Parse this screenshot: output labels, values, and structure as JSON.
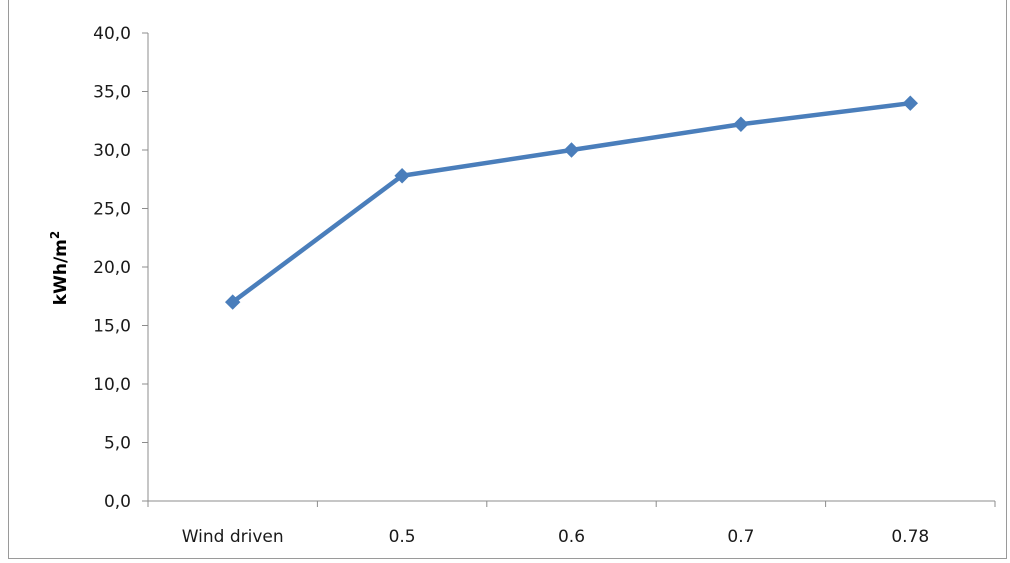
{
  "chart_data": {
    "type": "line",
    "title": "",
    "xlabel": "",
    "ylabel": "kWh/m",
    "ylabel_sup": "2",
    "categories": [
      "Wind driven",
      "0.5",
      "0.6",
      "0.7",
      "0.78"
    ],
    "series": [
      {
        "values": [
          17.0,
          27.8,
          30.0,
          32.2,
          34.0
        ],
        "color": "#4a7ebb"
      }
    ],
    "ylim": [
      0,
      40
    ],
    "yticks": [
      "0,0",
      "5,0",
      "10,0",
      "15,0",
      "20,0",
      "25,0",
      "30,0",
      "35,0",
      "40,0"
    ],
    "grid": false,
    "legend": "none",
    "marker": "diamond"
  }
}
